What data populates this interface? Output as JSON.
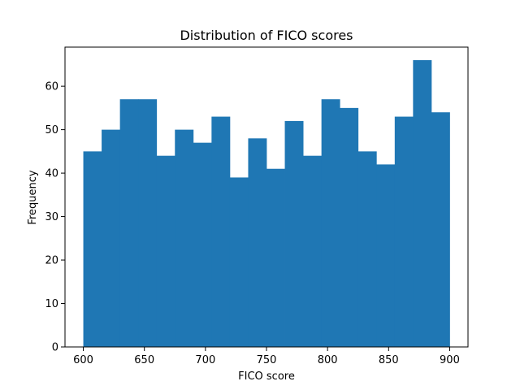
{
  "chart_data": {
    "type": "bar",
    "title": "Distribution of FICO scores",
    "xlabel": "FICO score",
    "ylabel": "Frequency",
    "bin_edges": [
      600,
      615,
      630,
      645,
      660,
      675,
      690,
      705,
      720,
      735,
      750,
      765,
      780,
      795,
      810,
      825,
      840,
      855,
      870,
      885,
      900
    ],
    "values": [
      45,
      50,
      57,
      57,
      44,
      50,
      47,
      53,
      39,
      48,
      41,
      52,
      44,
      57,
      55,
      45,
      42,
      53,
      66,
      54
    ],
    "xlim": [
      585,
      915
    ],
    "ylim": [
      0,
      69
    ],
    "xticks": [
      600,
      650,
      700,
      750,
      800,
      850,
      900
    ],
    "yticks": [
      0,
      10,
      20,
      30,
      40,
      50,
      60
    ],
    "bar_color": "#1f77b4",
    "grid": false,
    "legend": "none"
  }
}
